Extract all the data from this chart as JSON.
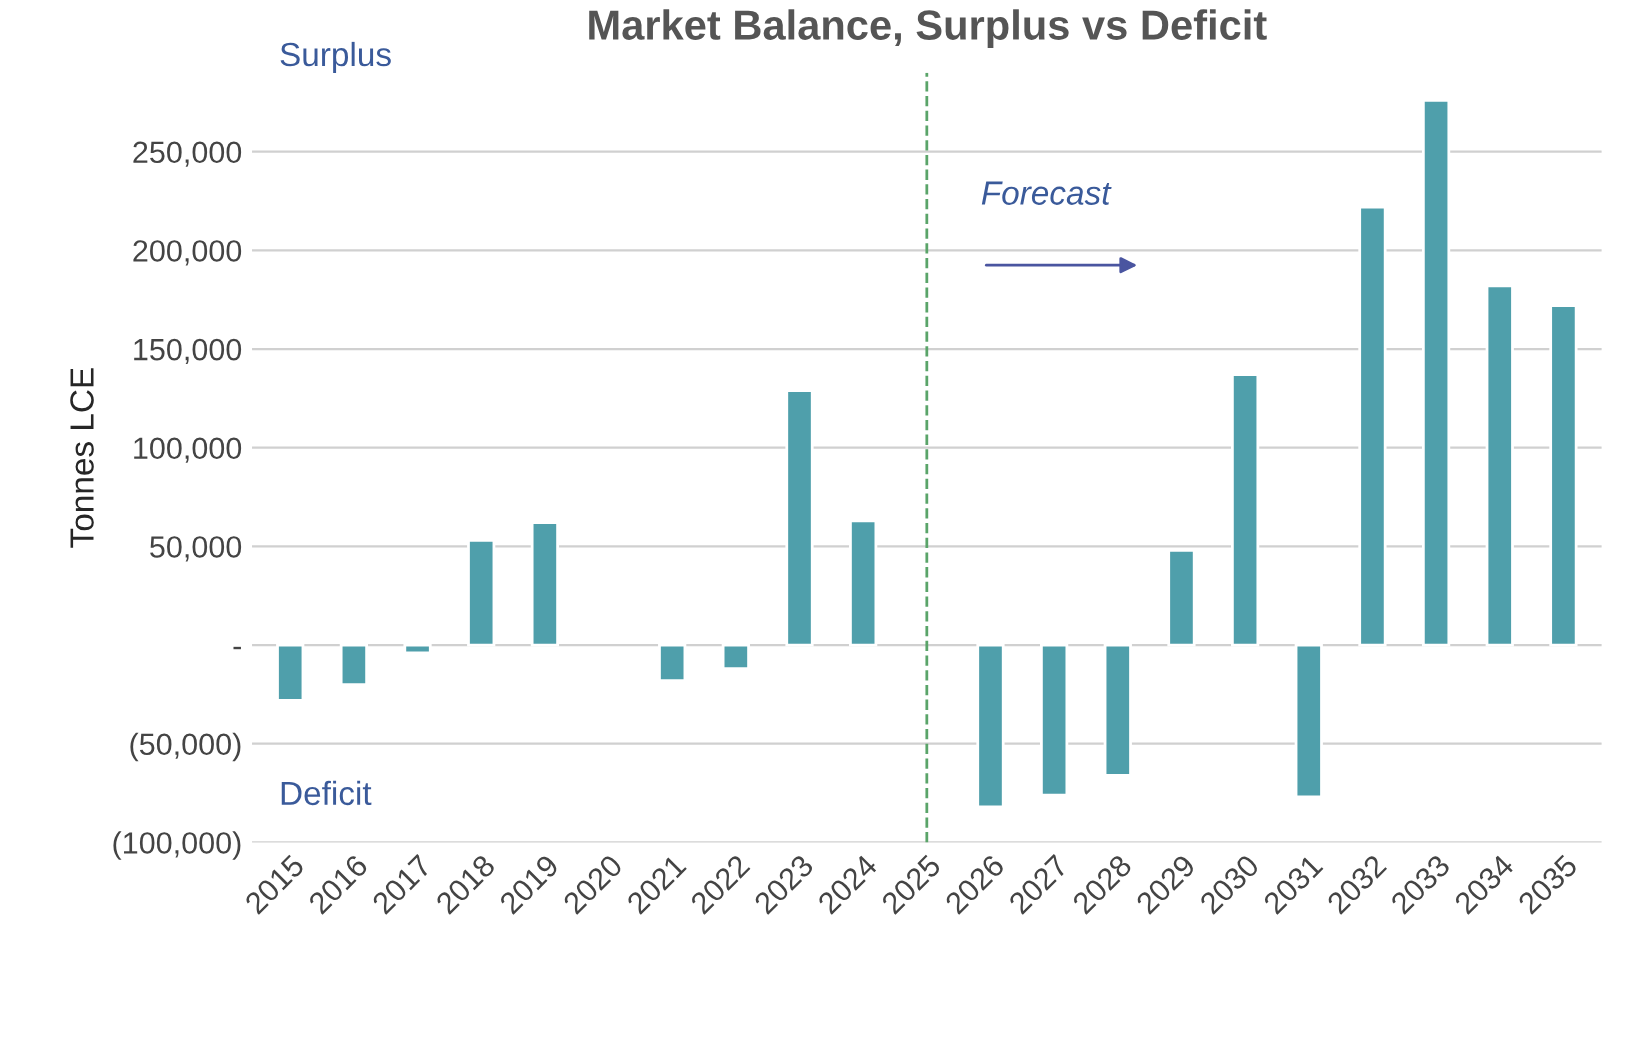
{
  "chart_data": {
    "type": "bar",
    "title": "Market Balance, Surplus vs Deficit",
    "ylabel": "Tonnes LCE",
    "categories": [
      "2015",
      "2016",
      "2017",
      "2018",
      "2019",
      "2020",
      "2021",
      "2022",
      "2023",
      "2024",
      "2025",
      "2026",
      "2027",
      "2028",
      "2029",
      "2030",
      "2031",
      "2032",
      "2033",
      "2034",
      "2035"
    ],
    "values": [
      -28000,
      -20000,
      -4000,
      53000,
      62000,
      null,
      -18000,
      -12000,
      129000,
      63000,
      null,
      -82000,
      -76000,
      -66000,
      48000,
      137000,
      -77000,
      222000,
      276000,
      182000,
      172000
    ],
    "color": "#4f9fab",
    "ylim": [
      -100000,
      290000
    ],
    "yticks": [
      {
        "value": -100000,
        "label": "(100,000)"
      },
      {
        "value": -50000,
        "label": "(50,000)"
      },
      {
        "value": 0,
        "label": "-"
      },
      {
        "value": 50000,
        "label": "50,000"
      },
      {
        "value": 100000,
        "label": "100,000"
      },
      {
        "value": 150000,
        "label": "150,000"
      },
      {
        "value": 200000,
        "label": "200,000"
      },
      {
        "value": 250000,
        "label": "250,000"
      }
    ],
    "grid": "y",
    "ref_lines": [
      {
        "axis": "x",
        "value": "2025",
        "color": "#5aa469",
        "line_style": "dashed"
      }
    ],
    "annotations": [
      "Surplus",
      "Deficit",
      "Forecast"
    ]
  }
}
